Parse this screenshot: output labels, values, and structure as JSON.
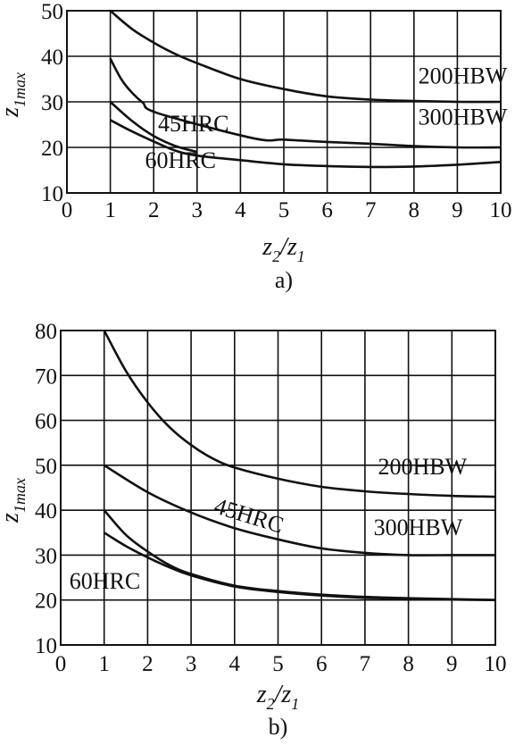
{
  "chart_data": [
    {
      "type": "line",
      "caption": "a)",
      "xlabel": "z2/z1",
      "ylabel": "z1max",
      "xlim": [
        0,
        10
      ],
      "ylim": [
        10,
        50
      ],
      "xticks": [
        0,
        1,
        2,
        3,
        4,
        5,
        6,
        7,
        8,
        9,
        10
      ],
      "yticks": [
        10,
        20,
        30,
        40,
        50
      ],
      "grid": true,
      "series": [
        {
          "name": "200HBW",
          "x": [
            1,
            1.5,
            2,
            2.5,
            3,
            4,
            5,
            6,
            7,
            8,
            9,
            10
          ],
          "y": [
            50,
            46,
            43,
            40.5,
            38.5,
            35,
            32.8,
            31.2,
            30.5,
            30.2,
            30,
            30
          ]
        },
        {
          "name": "300HBW",
          "x": [
            1,
            1.25,
            1.5,
            1.75,
            2.1,
            4.3,
            5,
            6,
            7,
            8,
            9,
            10
          ],
          "y": [
            39.5,
            35,
            32,
            29.8,
            27.5,
            22,
            21.7,
            21.2,
            20.8,
            20.3,
            20,
            20
          ]
        },
        {
          "name": "45HRC",
          "x": [
            1,
            1.5,
            2,
            2.5,
            3
          ],
          "y": [
            30,
            25.8,
            22.5,
            20.3,
            19
          ]
        },
        {
          "name": "60HRC",
          "x": [
            1,
            1.5,
            2,
            2.5,
            3,
            4,
            5,
            6,
            7,
            8,
            9,
            10
          ],
          "y": [
            26,
            23.5,
            21.3,
            19.3,
            18.2,
            17.2,
            16.3,
            15.9,
            15.7,
            15.8,
            16.2,
            16.8
          ]
        }
      ],
      "labels": [
        {
          "text": "200HBW",
          "x": 8.1,
          "y": 34
        },
        {
          "text": "300HBW",
          "x": 8.1,
          "y": 25
        },
        {
          "text": "45HRC",
          "x": 2.1,
          "y": 23.5
        },
        {
          "text": "60HRC",
          "x": 1.8,
          "y": 15.5
        }
      ]
    },
    {
      "type": "line",
      "caption": "b)",
      "xlabel": "z2/z1",
      "ylabel": "z1max",
      "xlim": [
        0,
        10
      ],
      "ylim": [
        10,
        80
      ],
      "xticks": [
        0,
        1,
        2,
        3,
        4,
        5,
        6,
        7,
        8,
        9,
        10
      ],
      "yticks": [
        10,
        20,
        30,
        40,
        50,
        60,
        70,
        80
      ],
      "grid": true,
      "series": [
        {
          "name": "200HBW",
          "x": [
            1,
            1.5,
            2,
            2.5,
            3,
            3.5,
            4,
            5,
            6,
            7,
            8,
            9,
            10
          ],
          "y": [
            80,
            71,
            64,
            58.5,
            54.5,
            51.5,
            49.5,
            47,
            45.2,
            44.2,
            43.6,
            43.2,
            43
          ]
        },
        {
          "name": "45HRC",
          "x": [
            1,
            2,
            3,
            4,
            5,
            6,
            7,
            8,
            9,
            10
          ],
          "y": [
            50,
            44,
            39.5,
            36,
            33.5,
            31.5,
            30.5,
            30,
            30,
            30
          ]
        },
        {
          "name": "300HBW",
          "x": [
            1,
            1.5,
            2,
            2.5,
            3,
            4,
            5,
            6,
            7,
            8,
            9,
            10
          ],
          "y": [
            40,
            34.5,
            30.8,
            27.8,
            25.8,
            23.2,
            22,
            21.2,
            20.7,
            20.4,
            20.2,
            20
          ]
        },
        {
          "name": "60HRC",
          "x": [
            1,
            1.5,
            2,
            2.5,
            3,
            4,
            5,
            6,
            7,
            8,
            9,
            10
          ],
          "y": [
            35,
            32,
            29.5,
            27.3,
            25.5,
            23,
            21.8,
            21,
            20.5,
            20.3,
            20.1,
            20
          ]
        }
      ],
      "labels": [
        {
          "text": "200HBW",
          "x": 7.3,
          "y": 48
        },
        {
          "text": "45HRC",
          "x": 3.5,
          "y": 39.5,
          "rotate": 17
        },
        {
          "text": "300HBW",
          "x": 7.2,
          "y": 34.5
        },
        {
          "text": "60HRC",
          "x": 0.2,
          "y": 22.5
        }
      ]
    }
  ]
}
